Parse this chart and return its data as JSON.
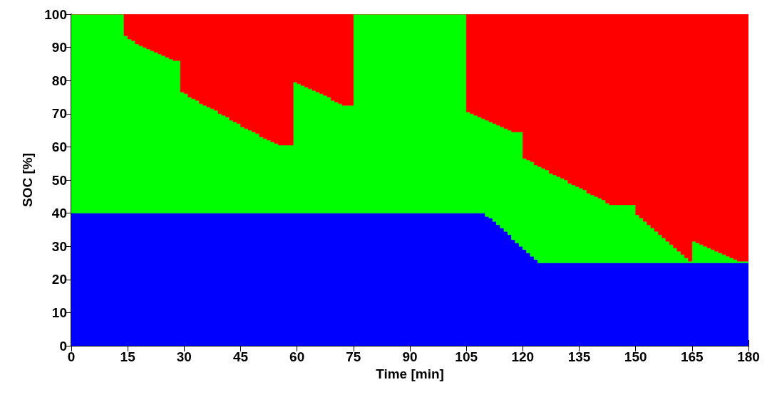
{
  "chart_data": {
    "type": "area",
    "stacked": true,
    "xlabel": "Time [min]",
    "ylabel": "SOC [%]",
    "x": [
      0.5,
      1.5,
      2.5,
      3.5,
      4.5,
      5.5,
      6.5,
      7.5,
      8.5,
      9.5,
      10.5,
      11.5,
      12.5,
      13.5,
      14.5,
      15.5,
      16.5,
      17.5,
      18.5,
      19.5,
      20.5,
      21.5,
      22.5,
      23.5,
      24.5,
      25.5,
      26.5,
      27.5,
      28.5,
      29.5,
      30.5,
      31.5,
      32.5,
      33.5,
      34.5,
      35.5,
      36.5,
      37.5,
      38.5,
      39.5,
      40.5,
      41.5,
      42.5,
      43.5,
      44.5,
      45.5,
      46.5,
      47.5,
      48.5,
      49.5,
      50.5,
      51.5,
      52.5,
      53.5,
      54.5,
      55.5,
      56.5,
      57.5,
      58.5,
      59.5,
      60.5,
      61.5,
      62.5,
      63.5,
      64.5,
      65.5,
      66.5,
      67.5,
      68.5,
      69.5,
      70.5,
      71.5,
      72.5,
      73.5,
      74.5,
      75.5,
      76.5,
      77.5,
      78.5,
      79.5,
      80.5,
      81.5,
      82.5,
      83.5,
      84.5,
      85.5,
      86.5,
      87.5,
      88.5,
      89.5,
      90.5,
      91.5,
      92.5,
      93.5,
      94.5,
      95.5,
      96.5,
      97.5,
      98.5,
      99.5,
      100.5,
      101.5,
      102.5,
      103.5,
      104.5,
      105.5,
      106.5,
      107.5,
      108.5,
      109.5,
      110.5,
      111.5,
      112.5,
      113.5,
      114.5,
      115.5,
      116.5,
      117.5,
      118.5,
      119.5,
      120.5,
      121.5,
      122.5,
      123.5,
      124.5,
      125.5,
      126.5,
      127.5,
      128.5,
      129.5,
      130.5,
      131.5,
      132.5,
      133.5,
      134.5,
      135.5,
      136.5,
      137.5,
      138.5,
      139.5,
      140.5,
      141.5,
      142.5,
      143.5,
      144.5,
      145.5,
      146.5,
      147.5,
      148.5,
      149.5,
      150.5,
      151.5,
      152.5,
      153.5,
      154.5,
      155.5,
      156.5,
      157.5,
      158.5,
      159.5,
      160.5,
      161.5,
      162.5,
      163.5,
      164.5,
      165.5,
      166.5,
      167.5,
      168.5,
      169.5,
      170.5,
      171.5,
      172.5,
      173.5,
      174.5,
      175.5,
      176.5,
      177.5,
      178.5,
      179.5
    ],
    "series": [
      {
        "color": "#0000ff",
        "values": [
          40,
          40,
          40,
          40,
          40,
          40,
          40,
          40,
          40,
          40,
          40,
          40,
          40,
          40,
          40,
          40,
          40,
          40,
          40,
          40,
          40,
          40,
          40,
          40,
          40,
          40,
          40,
          40,
          40,
          40,
          40,
          40,
          40,
          40,
          40,
          40,
          40,
          40,
          40,
          40,
          40,
          40,
          40,
          40,
          40,
          40,
          40,
          40,
          40,
          40,
          40,
          40,
          40,
          40,
          40,
          40,
          40,
          40,
          40,
          40,
          40,
          40,
          40,
          40,
          40,
          40,
          40,
          40,
          40,
          40,
          40,
          40,
          40,
          40,
          40,
          40,
          40,
          40,
          40,
          40,
          40,
          40,
          40,
          40,
          40,
          40,
          40,
          40,
          40,
          40,
          40,
          40,
          40,
          40,
          40,
          40,
          40,
          40,
          40,
          40,
          40,
          40,
          40,
          40,
          40,
          40,
          40,
          40,
          40,
          40,
          39,
          38.5,
          37.5,
          36.5,
          35.5,
          34.5,
          33.5,
          32,
          31,
          30,
          29,
          28,
          27,
          26,
          25,
          25,
          25,
          25,
          25,
          25,
          25,
          25,
          25,
          25,
          25,
          25,
          25,
          25,
          25,
          25,
          25,
          25,
          25,
          25,
          25,
          25,
          25,
          25,
          25,
          25,
          25,
          25,
          25,
          25,
          25,
          25,
          25,
          25,
          25,
          25,
          25,
          25,
          25,
          25,
          25,
          25,
          25,
          25,
          25,
          25,
          25,
          25,
          25,
          25,
          25,
          25,
          25,
          25,
          25,
          25
        ]
      },
      {
        "color": "#00ff00",
        "values": [
          60,
          60,
          60,
          60,
          60,
          60,
          60,
          60,
          60,
          60,
          60,
          60,
          60,
          60,
          53.5,
          52.5,
          52,
          51,
          50.5,
          50,
          49.5,
          49,
          48.5,
          48,
          47.5,
          47,
          46.5,
          46,
          46,
          36.5,
          36,
          35,
          34.5,
          34,
          33,
          32.5,
          32,
          31.5,
          31,
          30,
          29.5,
          29,
          28,
          27.5,
          27,
          26,
          25.5,
          25,
          24.5,
          24,
          23,
          22.5,
          22,
          21.5,
          21,
          20.5,
          20.5,
          20.5,
          20.5,
          39.5,
          39,
          38.5,
          38,
          37.5,
          37,
          36.5,
          36,
          35.5,
          35,
          34,
          33.5,
          33,
          32.5,
          32.5,
          32.5,
          60,
          60,
          60,
          60,
          60,
          60,
          60,
          60,
          60,
          60,
          60,
          60,
          60,
          60,
          60,
          60,
          60,
          60,
          60,
          60,
          60,
          60,
          60,
          60,
          60,
          60,
          60,
          60,
          60,
          60,
          30.5,
          30,
          29.5,
          29,
          28.5,
          29,
          29,
          29.5,
          30,
          30.5,
          31,
          31.5,
          32.5,
          33.5,
          34.5,
          27.5,
          28,
          28.5,
          28.5,
          29,
          28.5,
          28,
          27,
          26.5,
          26,
          25.5,
          25,
          24,
          23.5,
          23,
          22.5,
          22,
          21,
          20.5,
          20,
          19.5,
          19,
          18,
          17.5,
          17.5,
          17.5,
          17.5,
          17.5,
          17.5,
          17.5,
          14.5,
          13.5,
          12.5,
          11.5,
          10.5,
          9.5,
          8.5,
          7.5,
          6.5,
          5.5,
          4.5,
          3.5,
          2.5,
          1.5,
          0.5,
          6.5,
          6,
          5.5,
          5,
          4.5,
          4,
          3.5,
          3,
          2.5,
          2,
          1.5,
          1,
          0.5,
          0.5,
          0.5
        ]
      },
      {
        "color": "#ff0000",
        "values": [
          0,
          0,
          0,
          0,
          0,
          0,
          0,
          0,
          0,
          0,
          0,
          0,
          0,
          0,
          6.5,
          7.5,
          8,
          9,
          9.5,
          10,
          10.5,
          11,
          11.5,
          12,
          12.5,
          13,
          13.5,
          14,
          14,
          23.5,
          24,
          25,
          25.5,
          26,
          27,
          27.5,
          28,
          28.5,
          29,
          30,
          30.5,
          31,
          32,
          32.5,
          33,
          34,
          34.5,
          35,
          35.5,
          36,
          37,
          37.5,
          38,
          38.5,
          39,
          39.5,
          39.5,
          39.5,
          39.5,
          20.5,
          21,
          21.5,
          22,
          22.5,
          23,
          23.5,
          24,
          24.5,
          25,
          26,
          26.5,
          27,
          27.5,
          27.5,
          27.5,
          0,
          0,
          0,
          0,
          0,
          0,
          0,
          0,
          0,
          0,
          0,
          0,
          0,
          0,
          0,
          0,
          0,
          0,
          0,
          0,
          0,
          0,
          0,
          0,
          0,
          0,
          0,
          0,
          0,
          0,
          29.5,
          30,
          30.5,
          31,
          31.5,
          32,
          32.5,
          33,
          33.5,
          34,
          34.5,
          35,
          35.5,
          35.5,
          35.5,
          43.5,
          44,
          44.5,
          45.5,
          46,
          46.5,
          47,
          48,
          48.5,
          49,
          49.5,
          50,
          51,
          51.5,
          52,
          52.5,
          53,
          54,
          54.5,
          55,
          55.5,
          56,
          57,
          57.5,
          57.5,
          57.5,
          57.5,
          57.5,
          57.5,
          57.5,
          60.5,
          61.5,
          62.5,
          63.5,
          64.5,
          65.5,
          66.5,
          67.5,
          68.5,
          69.5,
          70.5,
          71.5,
          72.5,
          73.5,
          74.5,
          68.5,
          69,
          69.5,
          70,
          70.5,
          71,
          71.5,
          72,
          72.5,
          73,
          73.5,
          74,
          74.5,
          74.5,
          74.5
        ]
      }
    ],
    "xlim": [
      0,
      180
    ],
    "xticks": [
      0,
      15,
      30,
      45,
      60,
      75,
      90,
      105,
      120,
      135,
      150,
      165,
      180
    ],
    "ylim": [
      0,
      100
    ],
    "yticks": [
      0,
      10,
      20,
      30,
      40,
      50,
      60,
      70,
      80,
      90,
      100
    ]
  }
}
